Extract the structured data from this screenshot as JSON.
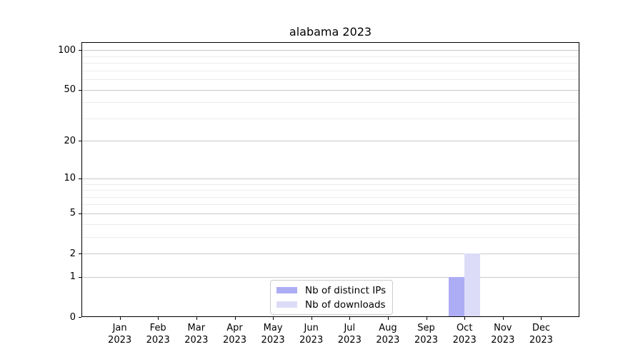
{
  "chart_data": {
    "type": "bar",
    "title": "alabama 2023",
    "months": [
      "Jan",
      "Feb",
      "Mar",
      "Apr",
      "May",
      "Jun",
      "Jul",
      "Aug",
      "Sep",
      "Oct",
      "Nov",
      "Dec"
    ],
    "year": "2023",
    "series": [
      {
        "name": "Nb of distinct IPs",
        "color": "#adadf5",
        "values": [
          0,
          0,
          0,
          0,
          0,
          0,
          0,
          0,
          0,
          1,
          0,
          0
        ]
      },
      {
        "name": "Nb of downloads",
        "color": "#dcdcf8",
        "values": [
          0,
          0,
          0,
          0,
          0,
          0,
          0,
          0,
          0,
          2,
          0,
          0
        ]
      }
    ],
    "y_axis": {
      "scale": "log1p",
      "ticks": [
        0,
        1,
        2,
        5,
        10,
        20,
        50,
        100
      ],
      "minor_ticks": [
        3,
        4,
        6,
        7,
        8,
        9,
        30,
        40,
        60,
        70,
        80,
        90
      ],
      "max": 115
    },
    "x_axis": {
      "tick_label_format": "month-over-year"
    },
    "legend": {
      "position": "lower center",
      "entries": [
        "Nb of distinct IPs",
        "Nb of downloads"
      ]
    },
    "grid": true,
    "xlabel": "",
    "ylabel": ""
  }
}
